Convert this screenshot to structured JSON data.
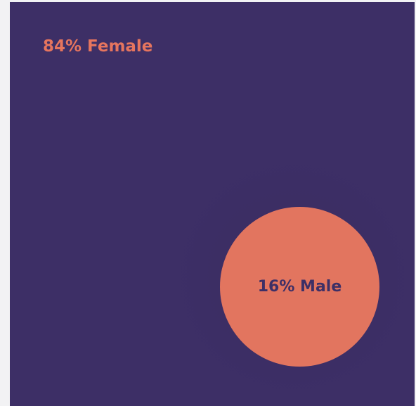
{
  "colors": {
    "female": "#3d2f66",
    "male": "#e2755f",
    "female_label": "#e6755e",
    "male_label": "#3d2f66"
  },
  "chart_data": {
    "type": "area",
    "categories": [
      "Female",
      "Male"
    ],
    "values": [
      84,
      16
    ],
    "labels": [
      "84% Female",
      "16% Male"
    ]
  }
}
